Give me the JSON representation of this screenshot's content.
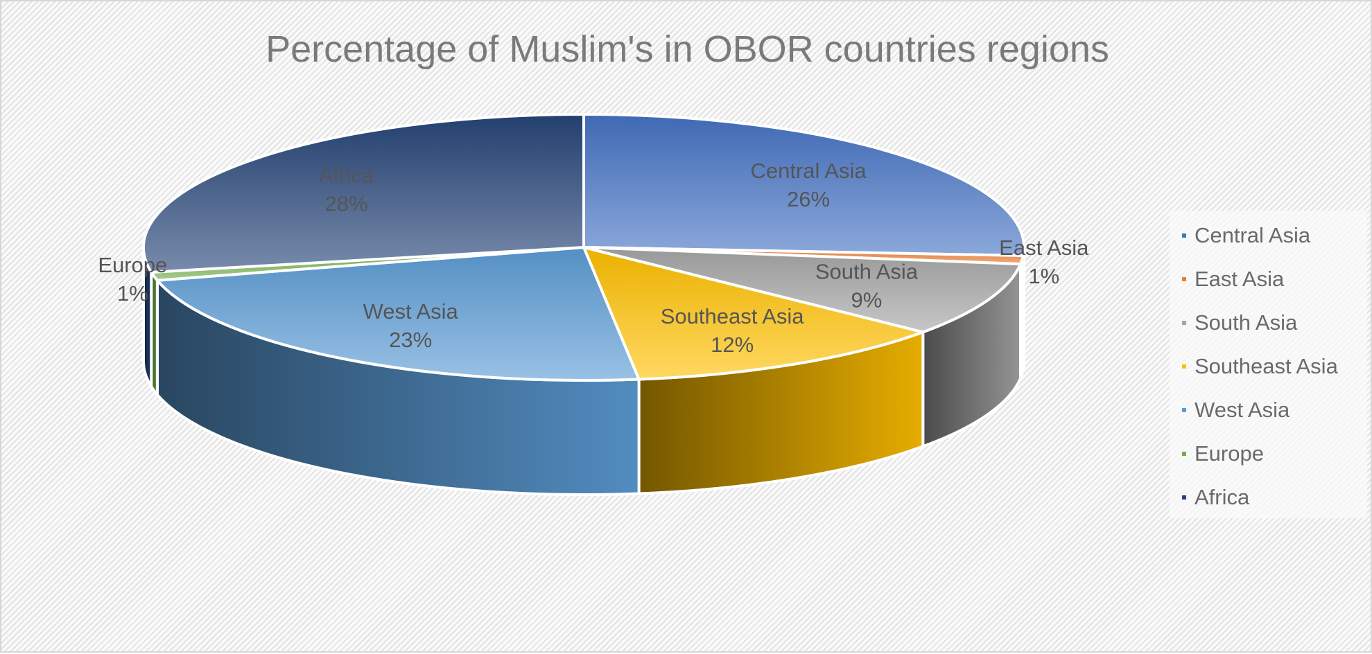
{
  "chart_data": {
    "type": "pie",
    "style": "3d",
    "title": "Percentage of Muslim's in OBOR countries regions",
    "legend_position": "right",
    "slices": [
      {
        "name": "Central Asia",
        "value": 26,
        "label": "26%",
        "color": "#4472C4"
      },
      {
        "name": "East Asia",
        "value": 1,
        "label": "1%",
        "color": "#ED7D31"
      },
      {
        "name": "South Asia",
        "value": 9,
        "label": "9%",
        "color": "#A5A5A5"
      },
      {
        "name": "Southeast Asia",
        "value": 12,
        "label": "12%",
        "color": "#FFC000"
      },
      {
        "name": "West Asia",
        "value": 23,
        "label": "23%",
        "color": "#5B9BD5"
      },
      {
        "name": "Europe",
        "value": 1,
        "label": "1%",
        "color": "#70AD47"
      },
      {
        "name": "Africa",
        "value": 28,
        "label": "28%",
        "color": "#264478"
      }
    ]
  }
}
